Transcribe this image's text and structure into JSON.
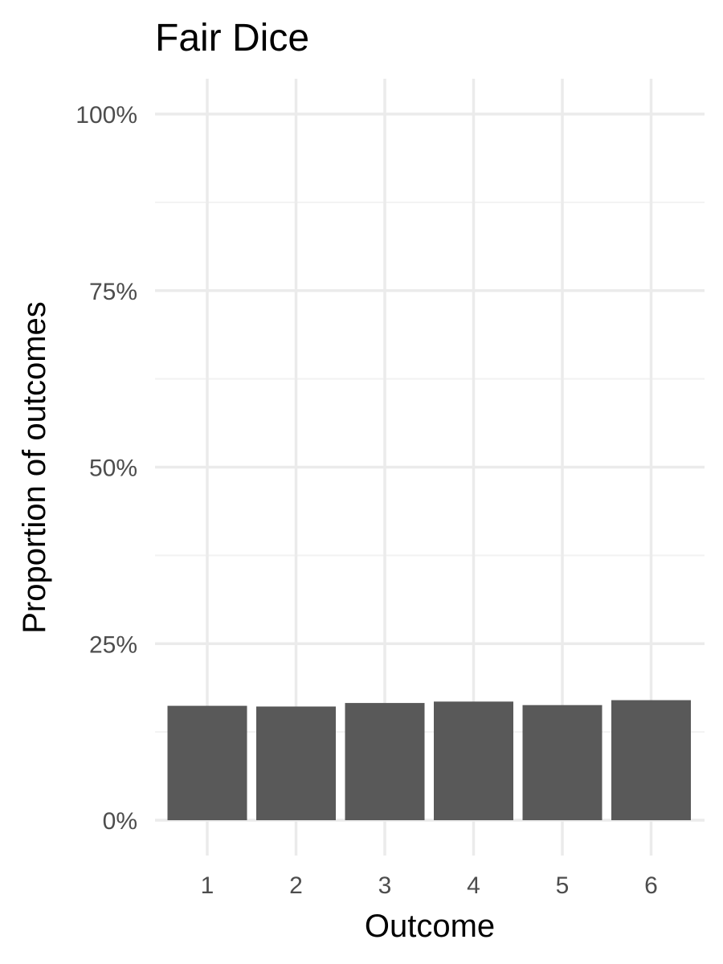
{
  "chart_data": {
    "type": "bar",
    "title": "Fair Dice",
    "xlabel": "Outcome",
    "ylabel": "Proportion of outcomes",
    "categories": [
      "1",
      "2",
      "3",
      "4",
      "5",
      "6"
    ],
    "values": [
      0.162,
      0.161,
      0.166,
      0.168,
      0.163,
      0.17
    ],
    "ylim": [
      0,
      1
    ],
    "y_ticks": [
      0,
      0.25,
      0.5,
      0.75,
      1
    ],
    "y_tick_labels": [
      "0%",
      "25%",
      "50%",
      "75%",
      "100%"
    ],
    "grid": true,
    "legend": "none",
    "colors": {
      "bar": "#595959",
      "grid_major": "#ebebeb",
      "grid_minor": "#f2f2f2",
      "background": "#ffffff"
    }
  }
}
